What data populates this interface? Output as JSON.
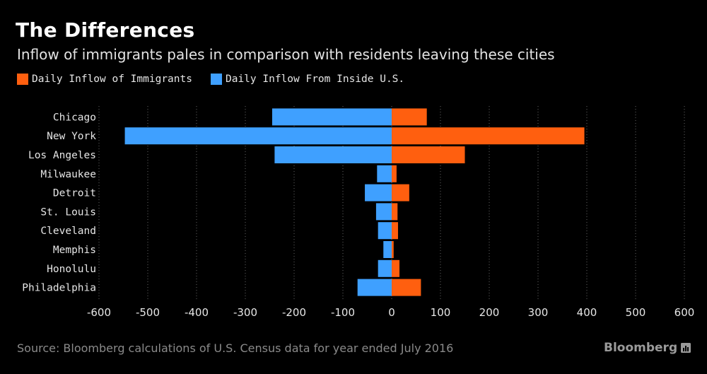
{
  "header": {
    "title": "The Differences",
    "subtitle": "Inflow of immigrants pales in comparison with residents leaving these cities"
  },
  "legend": {
    "items": [
      {
        "label": "Daily Inflow of Immigrants",
        "color": "#ff5f0f"
      },
      {
        "label": "Daily Inflow From Inside U.S.",
        "color": "#3fa0ff"
      }
    ]
  },
  "footer": {
    "source": "Source: Bloomberg calculations of U.S. Census data for year ended July 2016",
    "brand": "Bloomberg",
    "brand_icon": "bloomberg-chart-icon"
  },
  "colors": {
    "background": "#000000",
    "immigrants": "#ff5f0f",
    "domestic": "#3fa0ff",
    "grid": "#666666"
  },
  "chart_data": {
    "type": "bar",
    "orientation": "horizontal",
    "categories": [
      "Chicago",
      "New York",
      "Los Angeles",
      "Milwaukee",
      "Detroit",
      "St. Louis",
      "Cleveland",
      "Memphis",
      "Honolulu",
      "Philadelphia"
    ],
    "series": [
      {
        "name": "Daily Inflow of Immigrants",
        "values": [
          72,
          395,
          150,
          10,
          36,
          12,
          13,
          4,
          16,
          60
        ]
      },
      {
        "name": "Daily Inflow From Inside U.S.",
        "values": [
          -245,
          -547,
          -240,
          -30,
          -55,
          -32,
          -28,
          -17,
          -28,
          -70
        ]
      }
    ],
    "xlim": [
      -600,
      600
    ],
    "xticks": [
      -600,
      -500,
      -400,
      -300,
      -200,
      -100,
      0,
      100,
      200,
      300,
      400,
      500,
      600
    ],
    "grid": true,
    "grid_style": "dotted vertical",
    "legend_position": "top-left"
  }
}
